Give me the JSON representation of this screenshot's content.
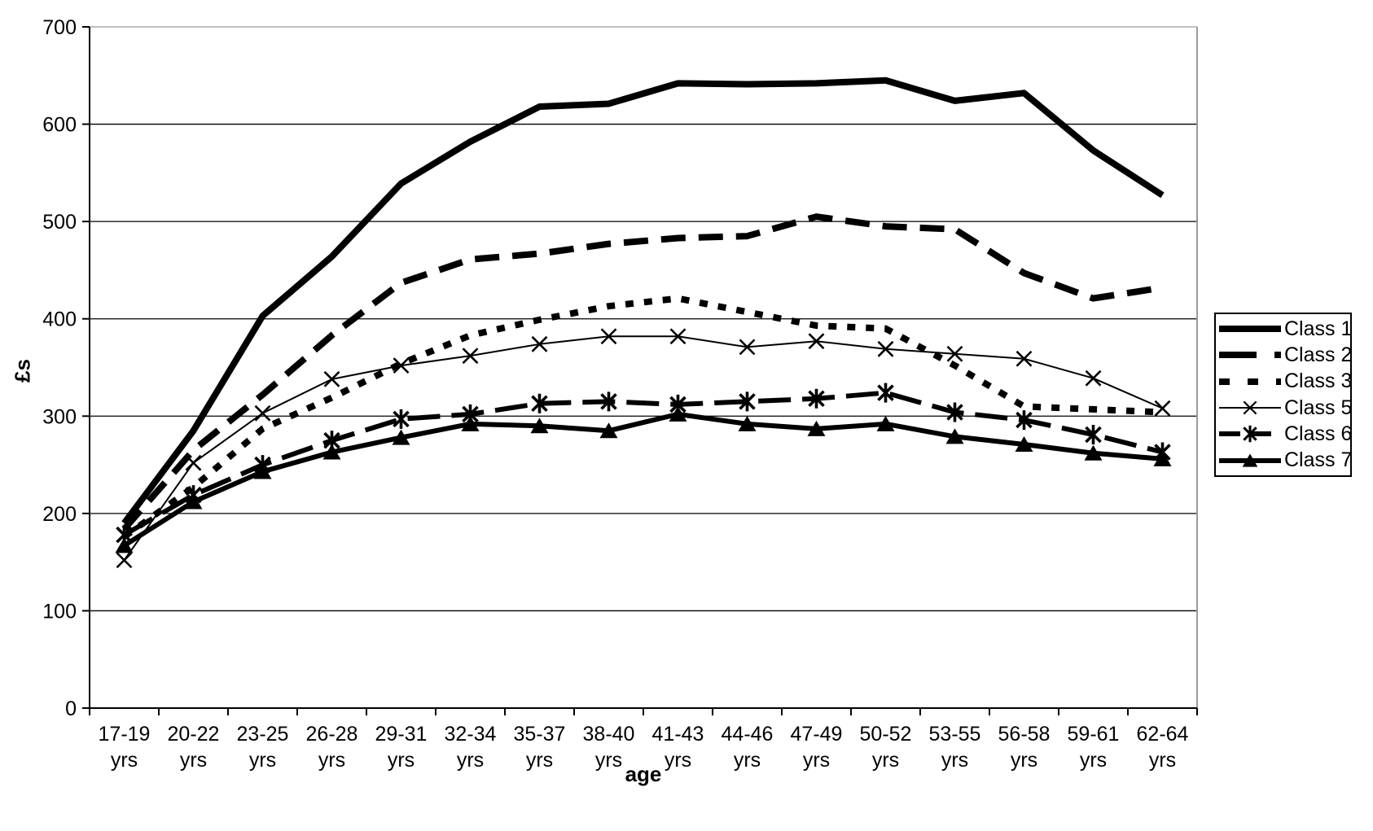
{
  "page": {
    "background": "#ffffff",
    "frame_gray": "#9a9a9a",
    "line_color": "#000000"
  },
  "chart_data": {
    "type": "line",
    "title": "",
    "xlabel": "age",
    "ylabel": "£s",
    "ylim": [
      0,
      700
    ],
    "yticks": [
      0,
      100,
      200,
      300,
      400,
      500,
      600,
      700
    ],
    "grid": "horizontal",
    "legend_position": "right",
    "category_suffix": "yrs",
    "categories": [
      "17-19",
      "20-22",
      "23-25",
      "26-28",
      "29-31",
      "32-34",
      "35-37",
      "38-40",
      "41-43",
      "44-46",
      "47-49",
      "50-52",
      "53-55",
      "56-58",
      "59-61",
      "62-64"
    ],
    "series": [
      {
        "name": "Class 1",
        "style": "thick-solid",
        "marker": "none",
        "values": [
          190,
          285,
          403,
          464,
          539,
          582,
          618,
          621,
          642,
          641,
          642,
          645,
          624,
          632,
          573,
          527
        ]
      },
      {
        "name": "Class 2",
        "style": "thick-dashed",
        "marker": "none",
        "values": [
          184,
          265,
          322,
          383,
          437,
          461,
          467,
          477,
          483,
          485,
          505,
          495,
          492,
          447,
          421,
          432
        ]
      },
      {
        "name": "Class 3",
        "style": "thick-dotted",
        "marker": "none",
        "values": [
          176,
          227,
          287,
          319,
          354,
          383,
          399,
          413,
          421,
          407,
          393,
          390,
          352,
          310,
          307,
          304
        ]
      },
      {
        "name": "Class 5",
        "style": "thin-solid",
        "marker": "x",
        "values": [
          152,
          252,
          303,
          338,
          352,
          362,
          374,
          382,
          382,
          371,
          377,
          369,
          364,
          359,
          339,
          308
        ]
      },
      {
        "name": "Class 6",
        "style": "medium-dashed",
        "marker": "asterisk",
        "values": [
          178,
          219,
          250,
          275,
          297,
          302,
          313,
          315,
          312,
          315,
          318,
          324,
          304,
          296,
          281,
          263
        ]
      },
      {
        "name": "Class 7",
        "style": "medium-solid",
        "marker": "triangle",
        "values": [
          167,
          212,
          243,
          263,
          278,
          292,
          290,
          285,
          302,
          292,
          287,
          292,
          279,
          271,
          262,
          256
        ]
      }
    ]
  }
}
